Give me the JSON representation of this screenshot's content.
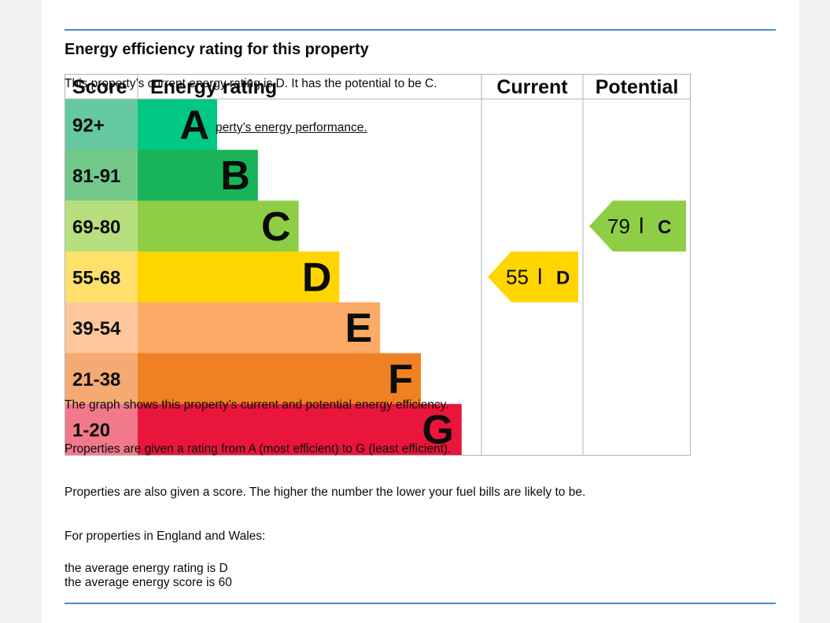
{
  "page": {
    "title": "Energy efficiency rating for this property",
    "current_text": "This property’s current energy rating is D. It has the potential to be C.",
    "link_text": "perty’s energy performance.",
    "graph_text": "The graph shows this property’s current and potential energy efficiency.",
    "ratings_text": "Properties are given a rating from A (most efficient) to G (least efficient).",
    "score_text": "Properties are also given a score. The higher the number the lower your fuel bills are likely to be.",
    "region_text": "For properties in England and Wales:",
    "avg_rating_text": "the average energy rating is D",
    "avg_score_text": "the average energy score is 60"
  },
  "chart_data": {
    "type": "table",
    "headers": [
      "Score",
      "Energy rating",
      "Current",
      "Potential"
    ],
    "bands": [
      {
        "score": "92+",
        "letter": "A",
        "score_color": "#66c8a0",
        "bar_color": "#00c781"
      },
      {
        "score": "81-91",
        "letter": "B",
        "score_color": "#72c98a",
        "bar_color": "#19b459"
      },
      {
        "score": "69-80",
        "letter": "C",
        "score_color": "#b8df7d",
        "bar_color": "#8dce46"
      },
      {
        "score": "55-68",
        "letter": "D",
        "score_color": "#ffe06a",
        "bar_color": "#ffd500"
      },
      {
        "score": "39-54",
        "letter": "E",
        "score_color": "#fdc79b",
        "bar_color": "#fcaa65"
      },
      {
        "score": "21-38",
        "letter": "F",
        "score_color": "#f4aa71",
        "bar_color": "#ef8023"
      },
      {
        "score": "1-20",
        "letter": "G",
        "score_color": "#f2798a",
        "bar_color": "#e9153b"
      }
    ],
    "current": {
      "value": 55,
      "letter": "D",
      "color": "#ffd500"
    },
    "potential": {
      "value": 79,
      "letter": "C",
      "color": "#8dce46"
    }
  }
}
